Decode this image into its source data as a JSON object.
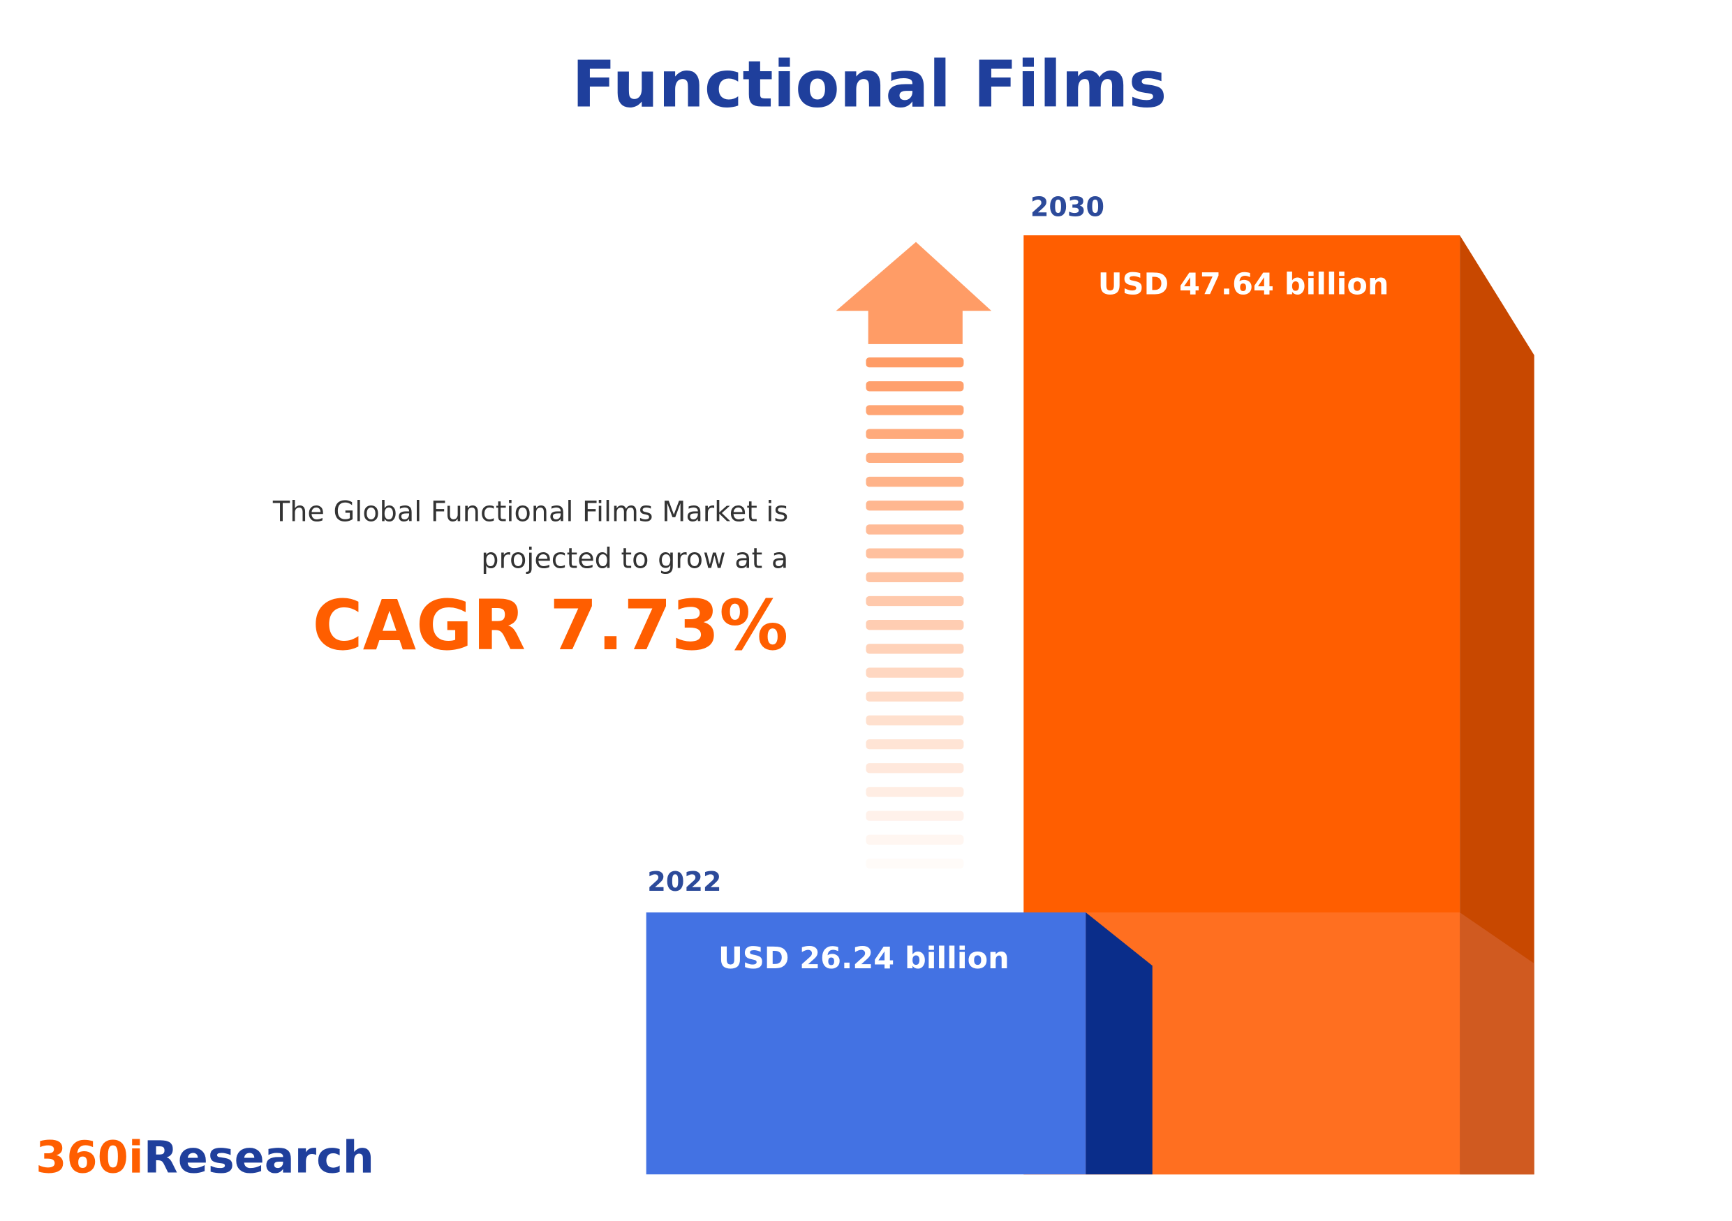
{
  "title": "Functional Films",
  "description": [
    "The Global Functional Films Market is",
    "projected to grow at a"
  ],
  "cagr": "CAGR 7.73%",
  "bars": [
    {
      "year": "2022",
      "label": "USD 26.24 billion"
    },
    {
      "year": "2030",
      "label": "USD 47.64 billion"
    }
  ],
  "logo": {
    "part1": "360i",
    "part2": "Research"
  }
}
